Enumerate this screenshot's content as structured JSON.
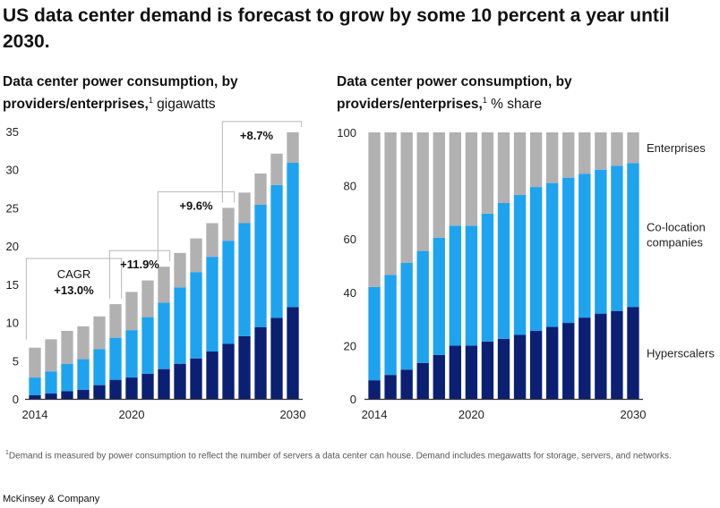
{
  "title": "US data center demand is forecast to grow by some 10 percent a year until 2030.",
  "footnote": {
    "marker": "1",
    "text": "Demand is measured by power consumption to reflect the number of servers a data center can house. Demand includes megawatts for storage, servers, and networks."
  },
  "source": "McKinsey & Company",
  "colors": {
    "hyperscalers": "#0b1f73",
    "colocation": "#1ea3ef",
    "enterprises": "#b1b1b1",
    "axis": "#333333",
    "bracket": "#b7b7b7"
  },
  "chart_data": [
    {
      "type": "bar",
      "stacked": true,
      "title": "Data center power consumption, by providers/enterprises,",
      "title_marker": "1",
      "unit": "gigawatts",
      "categories": [
        "2014",
        "2015",
        "2016",
        "2017",
        "2018",
        "2019",
        "2020",
        "2021",
        "2022",
        "2023",
        "2024",
        "2025",
        "2026",
        "2027",
        "2028",
        "2029",
        "2030"
      ],
      "tick_labels": {
        "2014": "2014",
        "2020": "2020",
        "2030": "2030"
      },
      "yticks": [
        0,
        5,
        10,
        15,
        20,
        25,
        30,
        35
      ],
      "ylim": [
        0,
        35
      ],
      "series": [
        {
          "values": [
            0.5,
            0.7,
            1.0,
            1.2,
            1.8,
            2.5,
            2.8,
            3.3,
            3.9,
            4.6,
            5.3,
            6.2,
            7.2,
            8.2,
            9.4,
            10.6,
            12.0
          ]
        },
        {
          "values": [
            2.3,
            2.9,
            3.6,
            4.0,
            4.7,
            5.5,
            6.2,
            7.4,
            8.7,
            10.0,
            11.3,
            12.4,
            13.5,
            14.8,
            16.0,
            17.4,
            18.9
          ]
        },
        {
          "values": [
            3.9,
            4.2,
            4.3,
            4.3,
            4.3,
            4.4,
            5.0,
            4.8,
            4.7,
            4.5,
            4.4,
            4.4,
            4.3,
            4.0,
            4.1,
            4.1,
            4.0
          ]
        }
      ],
      "annotations": [
        {
          "label": "CAGR",
          "value": "+13.0%",
          "from": "2014",
          "to": "2019"
        },
        {
          "value": "+11.9%",
          "from": "2019",
          "to": "2022"
        },
        {
          "value": "+9.6%",
          "from": "2022",
          "to": "2026"
        },
        {
          "value": "+8.7%",
          "from": "2026",
          "to": "2030"
        }
      ]
    },
    {
      "type": "bar",
      "stacked": true,
      "title": "Data center power consumption, by providers/enterprises,",
      "title_marker": "1",
      "unit": "% share",
      "categories": [
        "2014",
        "2015",
        "2016",
        "2017",
        "2018",
        "2019",
        "2020",
        "2021",
        "2022",
        "2023",
        "2024",
        "2025",
        "2026",
        "2027",
        "2028",
        "2029",
        "2030"
      ],
      "tick_labels": {
        "2014": "2014",
        "2020": "2020",
        "2030": "2030"
      },
      "yticks": [
        0,
        20,
        40,
        60,
        80,
        100
      ],
      "ylim": [
        0,
        100
      ],
      "legend_position": "right",
      "series": [
        {
          "name": "Hyperscalers",
          "values": [
            7,
            9,
            11,
            13.5,
            16.5,
            20,
            20,
            21.5,
            22.5,
            24,
            25.5,
            27,
            28.5,
            30.5,
            32,
            33,
            34.5
          ]
        },
        {
          "name": "Co-location companies",
          "values": [
            35,
            37.5,
            40,
            42,
            44,
            45,
            45,
            48,
            51,
            52.5,
            54,
            54,
            54.5,
            54,
            54,
            54.5,
            54
          ]
        },
        {
          "name": "Enterprises",
          "values": [
            58,
            53.5,
            49,
            44.5,
            39.5,
            35,
            35,
            30.5,
            26.5,
            23.5,
            20.5,
            19,
            17,
            15.5,
            14,
            12.5,
            11.5
          ]
        }
      ]
    }
  ]
}
